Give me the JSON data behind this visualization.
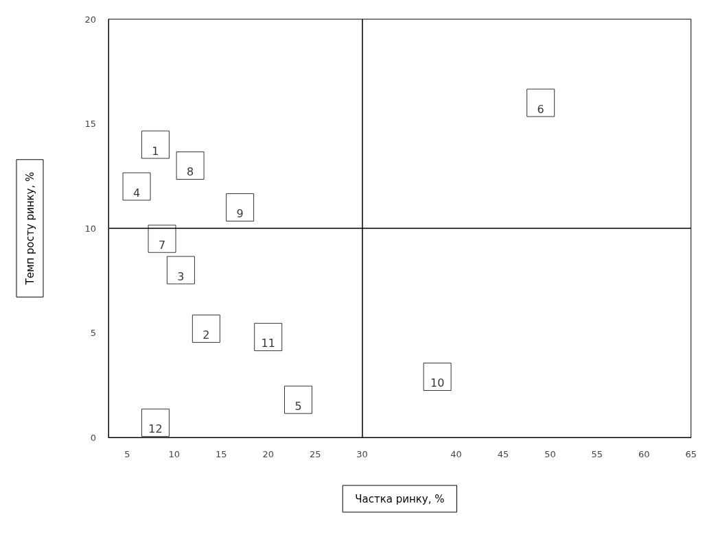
{
  "chart_data": {
    "type": "scatter",
    "xlabel": "Частка ринку, %",
    "ylabel": "Темп росту ринку, %",
    "x": [
      8,
      13.4,
      10.7,
      6,
      23.2,
      49,
      8.7,
      11.7,
      17,
      38,
      20,
      8
    ],
    "values": [
      14,
      5.2,
      8,
      12,
      1.8,
      16,
      9.5,
      13,
      11,
      2.9,
      4.8,
      0.7
    ],
    "color": "#ffffff",
    "marker": "square",
    "xlim": [
      3,
      65
    ],
    "xticks": [
      5,
      10,
      15,
      20,
      25,
      30,
      40,
      45,
      50,
      55,
      60,
      65
    ],
    "ylim": [
      0,
      20
    ],
    "yticks": [
      0,
      5,
      10,
      15,
      20
    ],
    "grid": false,
    "ref_lines": [
      {
        "axis": "x",
        "value": 30,
        "color": "#000000"
      },
      {
        "axis": "y",
        "value": 10,
        "color": "#000000"
      }
    ],
    "annotations": [
      {
        "text": "1",
        "x": 8,
        "y": 14
      },
      {
        "text": "2",
        "x": 13.4,
        "y": 5.2
      },
      {
        "text": "3",
        "x": 10.7,
        "y": 8
      },
      {
        "text": "4",
        "x": 6,
        "y": 12
      },
      {
        "text": "5",
        "x": 23.2,
        "y": 1.8
      },
      {
        "text": "6",
        "x": 49,
        "y": 16
      },
      {
        "text": "7",
        "x": 8.7,
        "y": 9.5
      },
      {
        "text": "8",
        "x": 11.7,
        "y": 13
      },
      {
        "text": "9",
        "x": 17,
        "y": 11
      },
      {
        "text": "10",
        "x": 38,
        "y": 2.9
      },
      {
        "text": "11",
        "x": 20,
        "y": 4.8
      },
      {
        "text": "12",
        "x": 8,
        "y": 0.7
      }
    ]
  }
}
